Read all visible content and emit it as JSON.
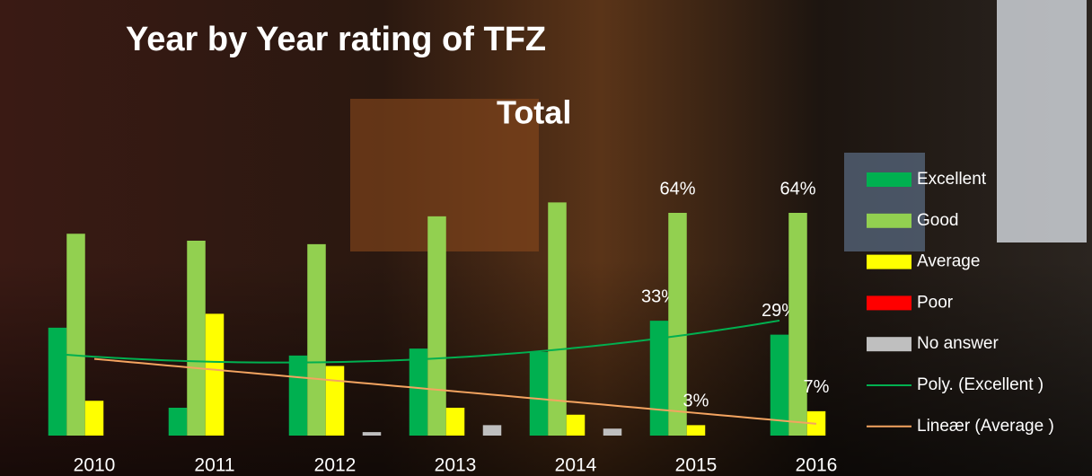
{
  "chart_data": {
    "type": "bar",
    "title": "Year by Year rating of TFZ",
    "subtitle": "Total",
    "categories": [
      "2010",
      "2011",
      "2012",
      "2013",
      "2014",
      "2015",
      "2016"
    ],
    "series": [
      {
        "name": "Excellent",
        "color": "#00b050",
        "values": [
          31,
          8,
          23,
          25,
          24,
          33,
          29
        ],
        "value_labels": [
          null,
          null,
          null,
          null,
          null,
          "33%",
          "29%"
        ]
      },
      {
        "name": "Good",
        "color": "#92d050",
        "values": [
          58,
          56,
          55,
          63,
          67,
          64,
          64
        ],
        "value_labels": [
          null,
          null,
          null,
          null,
          null,
          "64%",
          "64%"
        ]
      },
      {
        "name": "Average",
        "color": "#ffff00",
        "values": [
          10,
          35,
          20,
          8,
          6,
          3,
          7
        ],
        "value_labels": [
          null,
          null,
          null,
          null,
          null,
          "3%",
          "7%"
        ]
      },
      {
        "name": "Poor",
        "color": "#ff0000",
        "values": [
          0,
          0,
          0,
          0,
          0,
          0,
          0
        ]
      },
      {
        "name": "No answer",
        "color": "#bfbfbf",
        "values": [
          0,
          0,
          1,
          3,
          2,
          0,
          0
        ]
      }
    ],
    "trendlines": [
      {
        "name": "Poly. (Excellent )",
        "color": "#00b050",
        "kind": "poly2",
        "series": 0
      },
      {
        "name": "Lineær (Average )",
        "color": "#f4a460",
        "kind": "linear",
        "series": 2
      }
    ],
    "legend": "right"
  }
}
